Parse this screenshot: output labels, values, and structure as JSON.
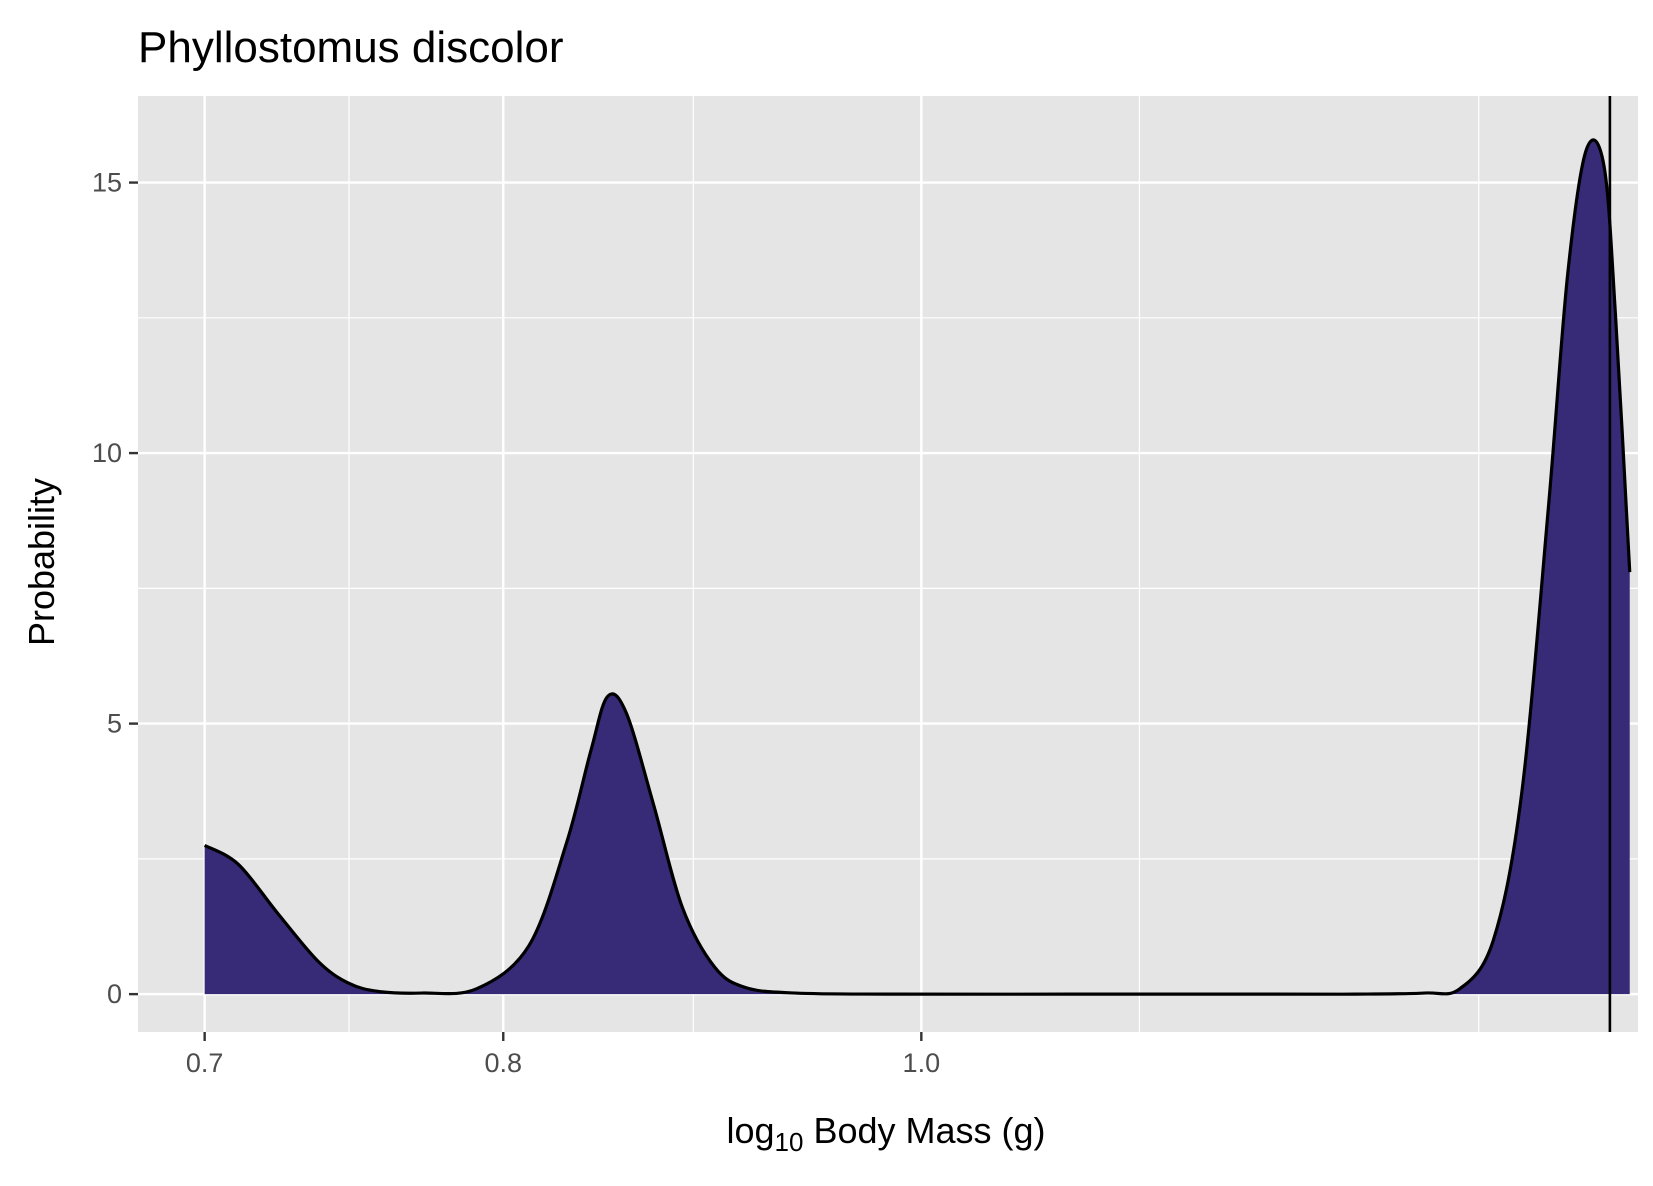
{
  "chart_data": {
    "type": "area",
    "title": "Phyllostomus discolor",
    "xlabel": {
      "base": "log",
      "subscript": "10",
      "rest": " Body Mass (g)"
    },
    "ylabel": "Probability",
    "x_scale": "reciprocal",
    "xlim": [
      0.681,
      1.75
    ],
    "ylim": [
      -0.7,
      16.6
    ],
    "x_ticks": [
      {
        "value": 0.7,
        "label": "0.7"
      },
      {
        "value": 0.8,
        "label": "0.8"
      },
      {
        "value": 1.0,
        "label": "1.0"
      }
    ],
    "x_minor_grid": [
      0.745,
      0.88,
      1.15,
      1.5
    ],
    "y_ticks": [
      {
        "value": 0,
        "label": "0"
      },
      {
        "value": 5,
        "label": "5"
      },
      {
        "value": 10,
        "label": "10"
      },
      {
        "value": 15,
        "label": "15"
      }
    ],
    "y_minor_grid": [
      2.5,
      7.5,
      12.5
    ],
    "grid": true,
    "colors": {
      "panel_background": "#e5e5e5",
      "grid": "#ffffff",
      "fill": "#372a77",
      "outline": "#000000",
      "reference_line": "#000000"
    },
    "density": {
      "x": [
        0.7,
        0.71,
        0.722,
        0.735,
        0.745,
        0.755,
        0.77,
        0.79,
        0.81,
        0.825,
        0.835,
        0.842,
        0.85,
        0.862,
        0.875,
        0.89,
        0.905,
        0.93,
        0.98,
        1.1,
        1.25,
        1.35,
        1.43,
        1.475,
        1.52,
        1.56,
        1.6,
        1.63,
        1.66,
        1.69,
        1.71,
        1.735
      ],
      "y": [
        2.75,
        2.4,
        1.5,
        0.6,
        0.2,
        0.05,
        0.02,
        0.1,
        0.9,
        2.8,
        4.5,
        5.5,
        5.2,
        3.5,
        1.6,
        0.5,
        0.12,
        0.02,
        0.0,
        0.0,
        0.0,
        0.0,
        0.02,
        0.1,
        1.0,
        3.7,
        9.0,
        13.3,
        15.6,
        15.3,
        12.5,
        7.8
      ]
    },
    "reference_line_x": 1.7
  }
}
